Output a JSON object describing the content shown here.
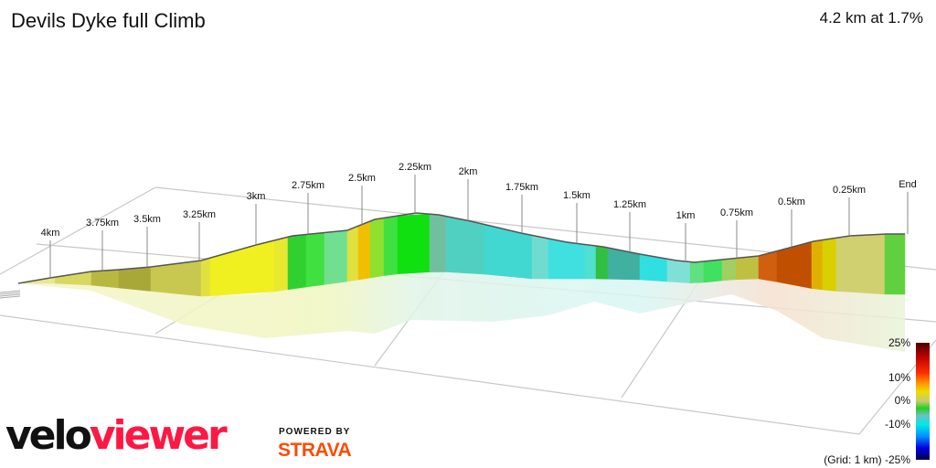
{
  "header": {
    "title": "Devils Dyke full Climb",
    "summary": "4.2 km at 1.7%"
  },
  "chart_data": {
    "type": "area",
    "title": "Devils Dyke full Climb",
    "distance_markers": [
      "4km",
      "3.75km",
      "3.5km",
      "3.25km",
      "3km",
      "2.75km",
      "2.5km",
      "2.25km",
      "2km",
      "1.75km",
      "1.5km",
      "1.25km",
      "1km",
      "0.75km",
      "0.5km",
      "0.25km",
      "End"
    ],
    "gradient_legend": {
      "ticks": [
        "25%",
        "10%",
        "0%",
        "-10%",
        "-25%"
      ],
      "grid_note": "(Grid: 1 km)"
    },
    "total_distance_km": 4.2,
    "average_gradient_pct": 1.7
  },
  "branding": {
    "logo_velo": "velo",
    "logo_viewer": "viewer",
    "powered_by": "POWERED BY",
    "strava": "STRAVA",
    "velo_color": "#111111",
    "viewer_color": "#ff1744",
    "strava_color": "#fc4c02"
  }
}
